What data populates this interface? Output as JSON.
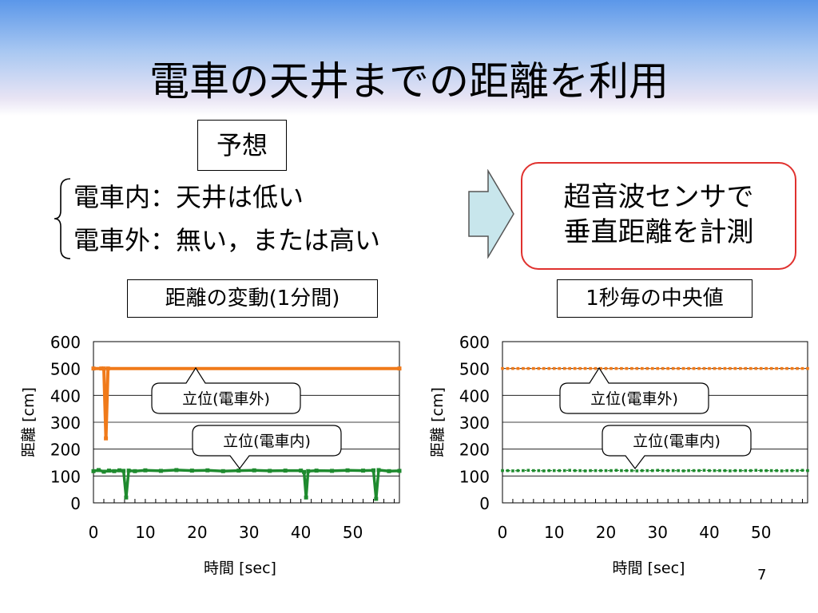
{
  "slide": {
    "title": "電車の天井までの距離を利用",
    "prediction_label": "予想",
    "inside_line": "電車内：天井は低い",
    "outside_line": "電車外：無い，または高い",
    "sensor_line1": "超音波センサで",
    "sensor_line2": "垂直距離を計測",
    "page_number": "7"
  },
  "colors": {
    "orange": "#f07a1a",
    "green": "#1e8a2e",
    "callout_border": "#e0312e"
  },
  "chart_data": [
    {
      "type": "line",
      "subtitle": "距離の変動(1分間)",
      "xlabel": "時間 [sec]",
      "ylabel": "距離 [cm]",
      "xlim": [
        0,
        59
      ],
      "ylim": [
        0,
        600
      ],
      "x_ticks": [
        0,
        10,
        20,
        30,
        40,
        50
      ],
      "y_ticks": [
        0,
        100,
        200,
        300,
        400,
        500,
        600
      ],
      "grid": true,
      "annotations": [
        "立位(電車外)",
        "立位(電車内)"
      ],
      "series": [
        {
          "color": "#f07a1a",
          "points": [
            [
              0,
              500
            ],
            [
              1.5,
              500
            ],
            [
              2,
              500
            ],
            [
              2.4,
              240
            ],
            [
              2.8,
              500
            ],
            [
              59,
              500
            ]
          ]
        },
        {
          "color": "#1e8a2e",
          "points": [
            [
              0,
              118
            ],
            [
              1,
              122
            ],
            [
              2,
              116
            ],
            [
              3,
              120
            ],
            [
              4,
              118
            ],
            [
              5,
              121
            ],
            [
              5.8,
              119
            ],
            [
              6.3,
              20
            ],
            [
              6.8,
              120
            ],
            [
              8,
              118
            ],
            [
              10,
              121
            ],
            [
              13,
              119
            ],
            [
              16,
              122
            ],
            [
              19,
              120
            ],
            [
              22,
              121
            ],
            [
              25,
              118
            ],
            [
              28,
              120
            ],
            [
              31,
              121
            ],
            [
              34,
              119
            ],
            [
              37,
              120
            ],
            [
              40,
              120
            ],
            [
              40.6,
              115
            ],
            [
              41,
              20
            ],
            [
              41.4,
              118
            ],
            [
              43,
              120
            ],
            [
              46,
              119
            ],
            [
              49,
              121
            ],
            [
              52,
              120
            ],
            [
              54,
              121
            ],
            [
              54.5,
              15
            ],
            [
              55,
              122
            ],
            [
              57,
              118
            ],
            [
              59,
              119
            ]
          ]
        }
      ]
    },
    {
      "type": "line",
      "subtitle": "1秒毎の中央値",
      "xlabel": "時間 [sec]",
      "ylabel": "距離 [cm]",
      "xlim": [
        0,
        59
      ],
      "ylim": [
        0,
        600
      ],
      "x_ticks": [
        0,
        10,
        20,
        30,
        40,
        50
      ],
      "y_ticks": [
        0,
        100,
        200,
        300,
        400,
        500,
        600
      ],
      "grid": true,
      "annotations": [
        "立位(電車外)",
        "立位(電車内)"
      ],
      "series": [
        {
          "color": "#f07a1a",
          "markers": true,
          "x_start": 0,
          "x_step": 1,
          "values": [
            500,
            500,
            500,
            500,
            500,
            500,
            500,
            500,
            500,
            500,
            500,
            500,
            500,
            500,
            500,
            500,
            500,
            500,
            500,
            500,
            500,
            500,
            500,
            500,
            500,
            500,
            500,
            500,
            500,
            500,
            500,
            500,
            500,
            500,
            500,
            500,
            500,
            500,
            500,
            500,
            500,
            500,
            500,
            500,
            500,
            500,
            500,
            500,
            500,
            500,
            500,
            500,
            500,
            500,
            500,
            500,
            500,
            500,
            500,
            500
          ]
        },
        {
          "color": "#1e8a2e",
          "markers": true,
          "x_start": 0,
          "x_step": 1,
          "values": [
            120,
            120,
            119,
            120,
            120,
            121,
            120,
            120,
            119,
            120,
            120,
            120,
            120,
            121,
            120,
            120,
            119,
            120,
            120,
            120,
            120,
            120,
            121,
            120,
            120,
            120,
            119,
            120,
            120,
            120,
            121,
            120,
            120,
            120,
            120,
            119,
            120,
            120,
            120,
            121,
            120,
            120,
            120,
            120,
            119,
            120,
            120,
            120,
            120,
            121,
            120,
            120,
            120,
            120,
            119,
            120,
            120,
            120,
            121,
            120
          ]
        }
      ]
    }
  ]
}
